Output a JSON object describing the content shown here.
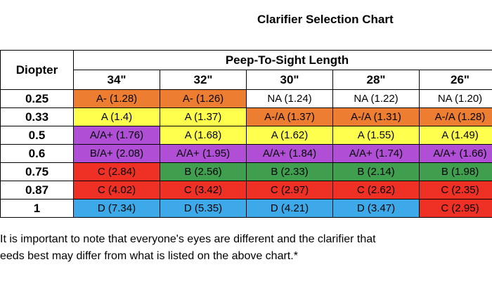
{
  "title": "Clarifier Selection Chart",
  "table": {
    "row_header": "Diopter",
    "group_header": "Peep-To-Sight Length",
    "columns": [
      "34\"",
      "32\"",
      "30\"",
      "28\"",
      "26\""
    ],
    "rows": [
      {
        "label": "0.25",
        "cells": [
          {
            "text": "A- (1.28)",
            "color": "#ed7d31"
          },
          {
            "text": "A- (1.26)",
            "color": "#ed7d31"
          },
          {
            "text": "NA (1.24)",
            "color": "#ffffff"
          },
          {
            "text": "NA (1.22)",
            "color": "#ffffff"
          },
          {
            "text": "NA (1.20)",
            "color": "#ffffff"
          }
        ]
      },
      {
        "label": "0.33",
        "cells": [
          {
            "text": "A (1.4)",
            "color": "#ffff4d"
          },
          {
            "text": "A (1.37)",
            "color": "#ffff4d"
          },
          {
            "text": "A-/A (1.37)",
            "color": "#ed7d31"
          },
          {
            "text": "A-/A (1.31)",
            "color": "#ed7d31"
          },
          {
            "text": "A-/A (1.28)",
            "color": "#ed7d31"
          }
        ]
      },
      {
        "label": "0.5",
        "cells": [
          {
            "text": "A/A+ (1.76)",
            "color": "#b04fd6"
          },
          {
            "text": "A (1.68)",
            "color": "#ffff4d"
          },
          {
            "text": "A (1.62)",
            "color": "#ffff4d"
          },
          {
            "text": "A (1.55)",
            "color": "#ffff4d"
          },
          {
            "text": "A (1.49)",
            "color": "#ffff4d"
          }
        ]
      },
      {
        "label": "0.6",
        "cells": [
          {
            "text": "B/A+ (2.08)",
            "color": "#b04fd6"
          },
          {
            "text": "A/A+ (1.95)",
            "color": "#b04fd6"
          },
          {
            "text": "A/A+ (1.84)",
            "color": "#b04fd6"
          },
          {
            "text": "A/A+ (1.74)",
            "color": "#b04fd6"
          },
          {
            "text": "A/A+ (1.66)",
            "color": "#b04fd6"
          }
        ]
      },
      {
        "label": "0.75",
        "cells": [
          {
            "text": "C (2.84)",
            "color": "#ee3124"
          },
          {
            "text": "B (2.56)",
            "color": "#3f9f4f"
          },
          {
            "text": "B (2.33)",
            "color": "#3f9f4f"
          },
          {
            "text": "B (2.14)",
            "color": "#3f9f4f"
          },
          {
            "text": "B (1.98)",
            "color": "#3f9f4f"
          }
        ]
      },
      {
        "label": "0.87",
        "cells": [
          {
            "text": "C (4.02)",
            "color": "#ee3124"
          },
          {
            "text": "C (3.42)",
            "color": "#ee3124"
          },
          {
            "text": "C (2.97)",
            "color": "#ee3124"
          },
          {
            "text": "C (2.62)",
            "color": "#ee3124"
          },
          {
            "text": "C (2.35)",
            "color": "#ee3124"
          }
        ]
      },
      {
        "label": "1",
        "cells": [
          {
            "text": "D (7.34)",
            "color": "#3ea9e8"
          },
          {
            "text": "D (5.35)",
            "color": "#3ea9e8"
          },
          {
            "text": "D (4.21)",
            "color": "#3ea9e8"
          },
          {
            "text": "D (3.47)",
            "color": "#3ea9e8"
          },
          {
            "text": "C (2.95)",
            "color": "#ee3124"
          }
        ]
      }
    ]
  },
  "footnote": {
    "line1": "It is important to note that everyone's eyes are different and the clarifier that",
    "line2": "eeds best may differ from what is listed on the above chart.*"
  }
}
